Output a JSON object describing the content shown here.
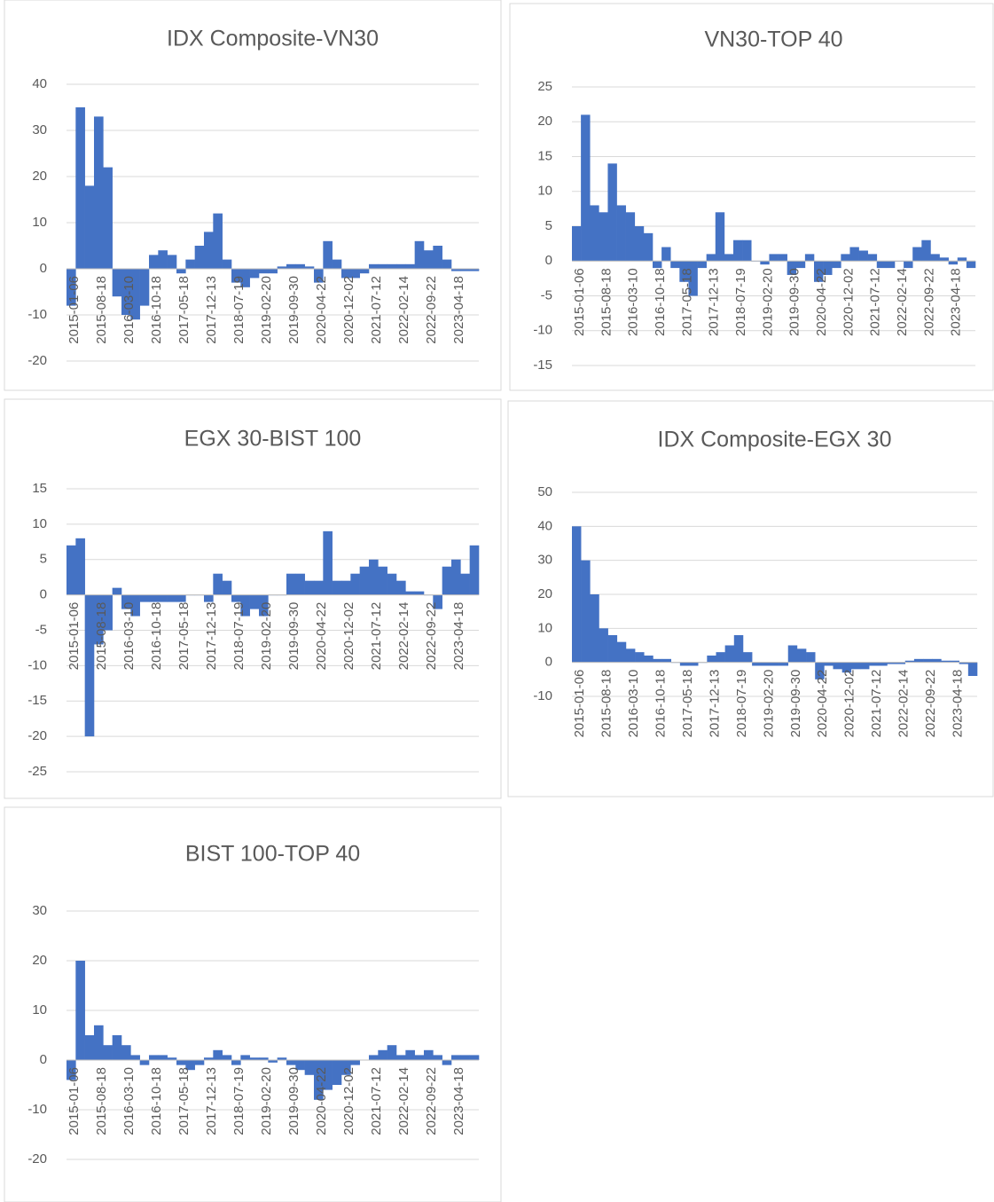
{
  "chart_data": [
    {
      "type": "bar",
      "title": "IDX Composite-VN30",
      "color": "#4472c4",
      "grid": true,
      "categories": [
        "2015-01-06",
        null,
        null,
        "2015-08-18",
        null,
        null,
        "2016-03-10",
        null,
        null,
        "2016-10-18",
        null,
        null,
        "2017-05-18",
        null,
        null,
        "2017-12-13",
        null,
        null,
        "2018-07-19",
        null,
        null,
        "2019-02-20",
        null,
        null,
        "2019-09-30",
        null,
        null,
        "2020-04-22",
        null,
        null,
        "2020-12-02",
        null,
        null,
        "2021-07-12",
        null,
        null,
        "2022-02-14",
        null,
        null,
        "2022-09-22",
        null,
        null,
        "2023-04-18",
        null,
        null
      ],
      "values": [
        -8,
        35,
        18,
        33,
        22,
        -6,
        -10,
        -11,
        -8,
        3,
        4,
        3,
        -1,
        2,
        5,
        8,
        12,
        2,
        -3,
        -4,
        -2,
        -1,
        -1,
        0.5,
        1,
        1,
        0.5,
        -3,
        6,
        2,
        -2,
        -2,
        -1,
        1,
        1,
        1,
        1,
        1,
        6,
        4,
        5,
        2,
        -0.5,
        -0.5,
        -0.5
      ],
      "ylim": [
        -20,
        40
      ],
      "yticks": [
        -20,
        -10,
        0,
        10,
        20,
        30,
        40
      ]
    },
    {
      "type": "bar",
      "title": "VN30-TOP 40",
      "color": "#4472c4",
      "grid": true,
      "categories": [
        "2015-01-06",
        null,
        null,
        "2015-08-18",
        null,
        null,
        "2016-03-10",
        null,
        null,
        "2016-10-18",
        null,
        null,
        "2017-05-18",
        null,
        null,
        "2017-12-13",
        null,
        null,
        "2018-07-19",
        null,
        null,
        "2019-02-20",
        null,
        null,
        "2019-09-30",
        null,
        null,
        "2020-04-22",
        null,
        null,
        "2020-12-02",
        null,
        null,
        "2021-07-12",
        null,
        null,
        "2022-02-14",
        null,
        null,
        "2022-09-22",
        null,
        null,
        "2023-04-18",
        null,
        null
      ],
      "values": [
        5,
        21,
        8,
        7,
        14,
        8,
        7,
        5,
        4,
        -1,
        2,
        -1,
        -3,
        -5,
        -1,
        1,
        7,
        1,
        3,
        3,
        0,
        -0.5,
        1,
        1,
        -2,
        -1,
        1,
        -3,
        -2,
        -1,
        1,
        2,
        1.5,
        1,
        -1,
        -1,
        0,
        -1,
        2,
        3,
        1,
        0.5,
        -0.5,
        0.5,
        -1
      ],
      "ylim": [
        -15,
        25
      ],
      "yticks": [
        -15,
        -10,
        -5,
        0,
        5,
        10,
        15,
        20,
        25
      ]
    },
    {
      "type": "bar",
      "title": "EGX 30-BIST 100",
      "color": "#4472c4",
      "grid": true,
      "categories": [
        "2015-01-06",
        null,
        null,
        "2015-08-18",
        null,
        null,
        "2016-03-10",
        null,
        null,
        "2016-10-18",
        null,
        null,
        "2017-05-18",
        null,
        null,
        "2017-12-13",
        null,
        null,
        "2018-07-19",
        null,
        null,
        "2019-02-20",
        null,
        null,
        "2019-09-30",
        null,
        null,
        "2020-04-22",
        null,
        null,
        "2020-12-02",
        null,
        null,
        "2021-07-12",
        null,
        null,
        "2022-02-14",
        null,
        null,
        "2022-09-22",
        null,
        null,
        "2023-04-18",
        null,
        null
      ],
      "values": [
        7,
        8,
        -20,
        -7,
        -5,
        1,
        -2,
        -3,
        -1,
        -1,
        -1,
        -1,
        -1,
        0,
        0,
        -1,
        3,
        2,
        -1,
        -3,
        -2,
        -3,
        0,
        0,
        3,
        3,
        2,
        2,
        9,
        2,
        2,
        3,
        4,
        5,
        4,
        3,
        2,
        0.5,
        0.5,
        0,
        -2,
        4,
        5,
        3,
        7
      ],
      "ylim": [
        -25,
        15
      ],
      "yticks": [
        -25,
        -20,
        -15,
        -10,
        -5,
        0,
        5,
        10,
        15
      ]
    },
    {
      "type": "bar",
      "title": "IDX Composite-EGX 30",
      "color": "#4472c4",
      "grid": true,
      "categories": [
        "2015-01-06",
        null,
        null,
        "2015-08-18",
        null,
        null,
        "2016-03-10",
        null,
        null,
        "2016-10-18",
        null,
        null,
        "2017-05-18",
        null,
        null,
        "2017-12-13",
        null,
        null,
        "2018-07-19",
        null,
        null,
        "2019-02-20",
        null,
        null,
        "2019-09-30",
        null,
        null,
        "2020-04-22",
        null,
        null,
        "2020-12-02",
        null,
        null,
        "2021-07-12",
        null,
        null,
        "2022-02-14",
        null,
        null,
        "2022-09-22",
        null,
        null,
        "2023-04-18",
        null,
        null
      ],
      "values": [
        40,
        30,
        20,
        10,
        8,
        6,
        4,
        3,
        2,
        1,
        1,
        0,
        -1,
        -1,
        0,
        2,
        3,
        5,
        8,
        3,
        -1,
        -1,
        -1,
        -1,
        5,
        4,
        3,
        -5,
        -1,
        -2,
        -3,
        -2,
        -2,
        -1,
        -1,
        -0.5,
        -0.5,
        0.5,
        1,
        1,
        1,
        0.5,
        0.5,
        -0.5,
        -4
      ],
      "ylim": [
        -10,
        50
      ],
      "yticks": [
        -10,
        0,
        10,
        20,
        30,
        40,
        50
      ]
    },
    {
      "type": "bar",
      "title": "BIST 100-TOP 40",
      "color": "#4472c4",
      "grid": true,
      "categories": [
        "2015-01-06",
        null,
        null,
        "2015-08-18",
        null,
        null,
        "2016-03-10",
        null,
        null,
        "2016-10-18",
        null,
        null,
        "2017-05-18",
        null,
        null,
        "2017-12-13",
        null,
        null,
        "2018-07-19",
        null,
        null,
        "2019-02-20",
        null,
        null,
        "2019-09-30",
        null,
        null,
        "2020-04-22",
        null,
        null,
        "2020-12-02",
        null,
        null,
        "2021-07-12",
        null,
        null,
        "2022-02-14",
        null,
        null,
        "2022-09-22",
        null,
        null,
        "2023-04-18",
        null,
        null
      ],
      "values": [
        -4,
        20,
        5,
        7,
        3,
        5,
        3,
        1,
        -1,
        1,
        1,
        0.5,
        -1,
        -2,
        -1,
        0.5,
        2,
        1,
        -1,
        1,
        0.5,
        0.5,
        -0.5,
        0.5,
        -1,
        -2,
        -3,
        -8,
        -6,
        -5,
        -3,
        -1,
        0,
        1,
        2,
        3,
        1,
        2,
        1,
        2,
        1,
        -1,
        1,
        1,
        1
      ],
      "ylim": [
        -20,
        30
      ],
      "yticks": [
        -20,
        -10,
        0,
        10,
        20,
        30
      ]
    }
  ]
}
